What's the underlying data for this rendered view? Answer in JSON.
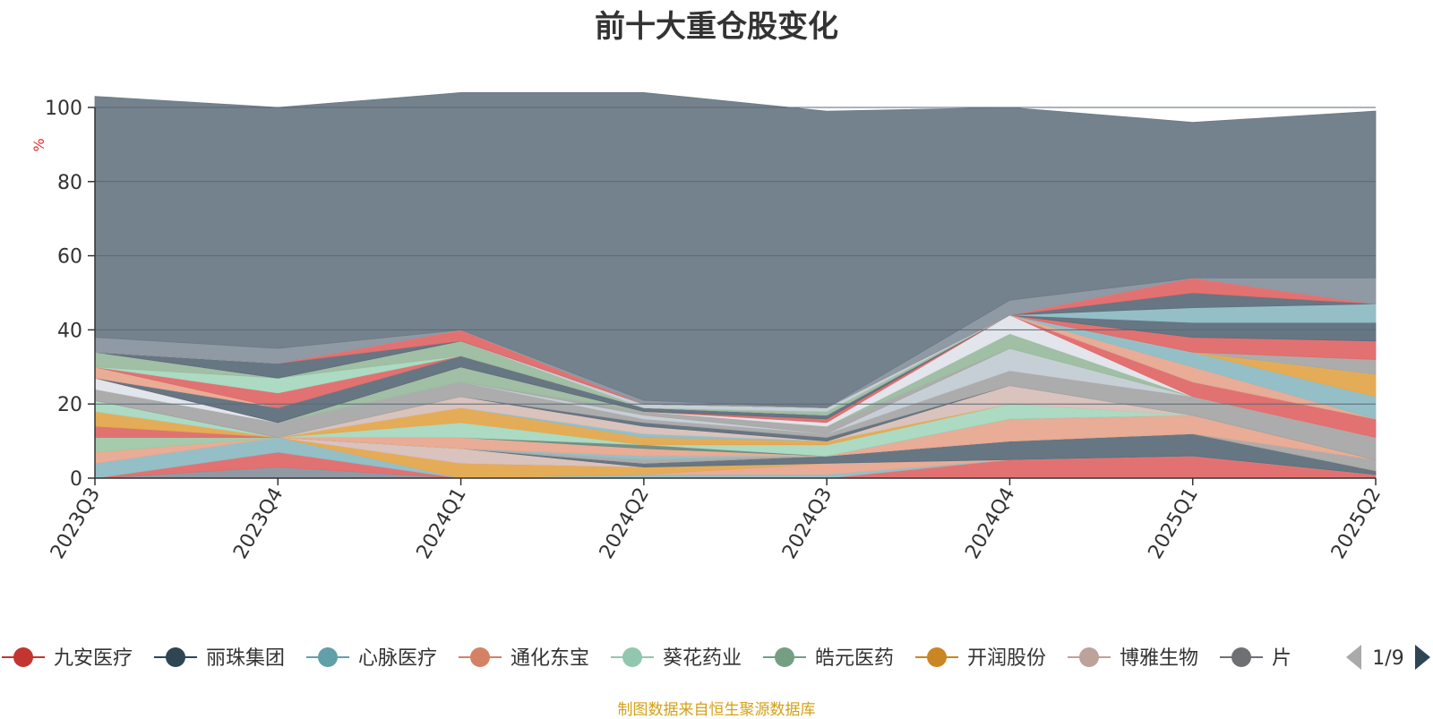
{
  "title": "前十大重仓股变化",
  "footer": "制图数据来自恒生聚源数据库",
  "pager": "1/9",
  "colors": {
    "plot_background": "#6d7b87",
    "gridline": "#5b6874",
    "axis": "#333333",
    "tick_text": "#333333",
    "unit_text": "#e03030",
    "footer_text": "#d4a017",
    "pager_active": "#2f4554",
    "pager_inactive": "#aaaaaa"
  },
  "chart_data": {
    "type": "area",
    "stacked": true,
    "ylabel": "%",
    "ylim": [
      0,
      100
    ],
    "yticks": [
      0,
      20,
      40,
      60,
      80,
      100
    ],
    "grid": true,
    "legend_position": "bottom",
    "categories": [
      "2023Q3",
      "2023Q4",
      "2024Q1",
      "2024Q2",
      "2024Q3",
      "2024Q4",
      "2025Q1",
      "2025Q2"
    ],
    "series": [
      {
        "name": "",
        "color": "#8a95a0",
        "values": [
          0,
          3,
          0,
          0,
          0,
          0,
          0,
          0
        ]
      },
      {
        "name": "",
        "color": "#e06a6a",
        "values": [
          0,
          4,
          0,
          0,
          0,
          5,
          6,
          1
        ]
      },
      {
        "name": "",
        "color": "#8fbcc4",
        "values": [
          4,
          4,
          0,
          1,
          1,
          0,
          0,
          0
        ]
      },
      {
        "name": "",
        "color": "#e8a890",
        "values": [
          3,
          0,
          0,
          0,
          3,
          0,
          0,
          0
        ]
      },
      {
        "name": "",
        "color": "#e4a84e",
        "values": [
          0,
          0,
          4,
          2,
          0,
          0,
          0,
          0
        ]
      },
      {
        "name": "",
        "color": "#a0c8a8",
        "values": [
          4,
          0,
          0,
          0,
          0,
          0,
          0,
          0
        ]
      },
      {
        "name": "",
        "color": "#e06a6a",
        "values": [
          3,
          0,
          0,
          0,
          0,
          0,
          0,
          0
        ]
      },
      {
        "name": "",
        "color": "#d8c0b8",
        "values": [
          0,
          0,
          4,
          0,
          0,
          0,
          0,
          0
        ]
      },
      {
        "name": "",
        "color": "#5f6f7c",
        "values": [
          0,
          0,
          0,
          1,
          2,
          5,
          6,
          1
        ]
      },
      {
        "name": "",
        "color": "#e4a84e",
        "values": [
          4,
          0,
          0,
          0,
          0,
          0,
          0,
          0
        ]
      },
      {
        "name": "",
        "color": "#a8a8a8",
        "values": [
          0,
          0,
          0,
          1,
          0,
          0,
          0,
          3
        ]
      },
      {
        "name": "",
        "color": "#8fbcc4",
        "values": [
          0,
          0,
          0,
          1,
          0,
          0,
          0,
          0
        ]
      },
      {
        "name": "",
        "color": "#e8a890",
        "values": [
          0,
          0,
          3,
          2,
          0,
          6,
          5,
          0
        ]
      },
      {
        "name": "",
        "color": "#a8d8c0",
        "values": [
          3,
          0,
          0,
          0,
          0,
          0,
          0,
          0
        ]
      },
      {
        "name": "",
        "color": "#6f8a7e",
        "values": [
          0,
          0,
          0,
          1,
          0,
          0,
          0,
          0
        ]
      },
      {
        "name": "",
        "color": "#a8d8c0",
        "values": [
          0,
          0,
          4,
          0,
          3,
          4,
          0,
          0
        ]
      },
      {
        "name": "",
        "color": "#e4a84e",
        "values": [
          0,
          0,
          4,
          2,
          1,
          0,
          0,
          0
        ]
      },
      {
        "name": "",
        "color": "#8fbcc4",
        "values": [
          0,
          0,
          0,
          1,
          0,
          0,
          0,
          0
        ]
      },
      {
        "name": "",
        "color": "#d8c0b8",
        "values": [
          0,
          0,
          3,
          2,
          0,
          5,
          0,
          0
        ]
      },
      {
        "name": "",
        "color": "#5f6f7c",
        "values": [
          0,
          0,
          0,
          1,
          1,
          0,
          0,
          0
        ]
      },
      {
        "name": "",
        "color": "#a8a8a8",
        "values": [
          3,
          4,
          4,
          1,
          1,
          4,
          5,
          6
        ]
      },
      {
        "name": "",
        "color": "#c4ccd4",
        "values": [
          0,
          0,
          0,
          1,
          0,
          6,
          0,
          0
        ]
      },
      {
        "name": "",
        "color": "#a8a8a8",
        "values": [
          0,
          0,
          0,
          1,
          2,
          0,
          0,
          0
        ]
      },
      {
        "name": "",
        "color": "#9bbca0",
        "values": [
          0,
          0,
          4,
          0,
          0,
          4,
          0,
          0
        ]
      },
      {
        "name": "",
        "color": "#e0e4ea",
        "values": [
          3,
          0,
          0,
          0,
          1,
          5,
          0,
          0
        ]
      },
      {
        "name": "",
        "color": "#e06a6a",
        "values": [
          0,
          0,
          0,
          0,
          1,
          0,
          4,
          5
        ]
      },
      {
        "name": "",
        "color": "#5f6f7c",
        "values": [
          0,
          4,
          3,
          1,
          1,
          0,
          0,
          0
        ]
      },
      {
        "name": "",
        "color": "#e8a890",
        "values": [
          3,
          0,
          0,
          0,
          0,
          0,
          0,
          0
        ]
      },
      {
        "name": "",
        "color": "#e06a6a",
        "values": [
          0,
          4,
          0,
          0,
          0,
          0,
          0,
          0
        ]
      },
      {
        "name": "",
        "color": "#a8d8c0",
        "values": [
          0,
          4,
          0,
          0,
          0,
          0,
          0,
          0
        ]
      },
      {
        "name": "",
        "color": "#9bbca0",
        "values": [
          4,
          0,
          4,
          0,
          1,
          0,
          0,
          0
        ]
      },
      {
        "name": "",
        "color": "#c4ccd4",
        "values": [
          0,
          0,
          0,
          1,
          1,
          0,
          0,
          0
        ]
      },
      {
        "name": "",
        "color": "#e8a890",
        "values": [
          0,
          0,
          0,
          0,
          0,
          0,
          4,
          0
        ]
      },
      {
        "name": "",
        "color": "#8fbcc4",
        "values": [
          0,
          0,
          0,
          0,
          0,
          0,
          4,
          6
        ]
      },
      {
        "name": "",
        "color": "#e4a84e",
        "values": [
          0,
          0,
          0,
          0,
          0,
          0,
          0,
          6
        ]
      },
      {
        "name": "",
        "color": "#a8a8a8",
        "values": [
          0,
          0,
          0,
          0,
          0,
          0,
          0,
          4
        ]
      },
      {
        "name": "",
        "color": "#e06a6a",
        "values": [
          0,
          0,
          0,
          0,
          0,
          0,
          4,
          5
        ]
      },
      {
        "name": "",
        "color": "#5f6f7c",
        "values": [
          0,
          0,
          0,
          0,
          0,
          0,
          4,
          5
        ]
      },
      {
        "name": "",
        "color": "#8fbcc4",
        "values": [
          0,
          0,
          0,
          0,
          0,
          0,
          4,
          5
        ]
      },
      {
        "name": "",
        "color": "#5f6f7c",
        "values": [
          0,
          4,
          0,
          0,
          0,
          0,
          4,
          0
        ]
      },
      {
        "name": "",
        "color": "#e06a6a",
        "values": [
          0,
          0,
          3,
          0,
          0,
          0,
          4,
          0
        ]
      },
      {
        "name": "",
        "color": "#e8a890",
        "values": [
          0,
          0,
          0,
          0,
          0,
          0,
          0,
          0
        ]
      },
      {
        "name": "",
        "color": "#d8c0b8",
        "values": [
          0,
          0,
          0,
          0,
          0,
          0,
          0,
          0
        ]
      },
      {
        "name": "",
        "color": "#8a95a0",
        "values": [
          4,
          4,
          0,
          1,
          0,
          4,
          0,
          7
        ]
      },
      {
        "name": "",
        "color": "#6d7b87",
        "values": [
          65,
          65,
          64,
          83,
          80,
          52,
          42,
          45
        ]
      }
    ],
    "legend": [
      {
        "name": "九安医疗",
        "color": "#c23531"
      },
      {
        "name": "丽珠集团",
        "color": "#2f4554"
      },
      {
        "name": "心脉医疗",
        "color": "#61a0a8"
      },
      {
        "name": "通化东宝",
        "color": "#d48265"
      },
      {
        "name": "葵花药业",
        "color": "#91c7ae"
      },
      {
        "name": "皓元医药",
        "color": "#749f83"
      },
      {
        "name": "开润股份",
        "color": "#ca8622"
      },
      {
        "name": "博雅生物",
        "color": "#bda29a"
      },
      {
        "name": "片",
        "color": "#6e7074"
      }
    ]
  }
}
